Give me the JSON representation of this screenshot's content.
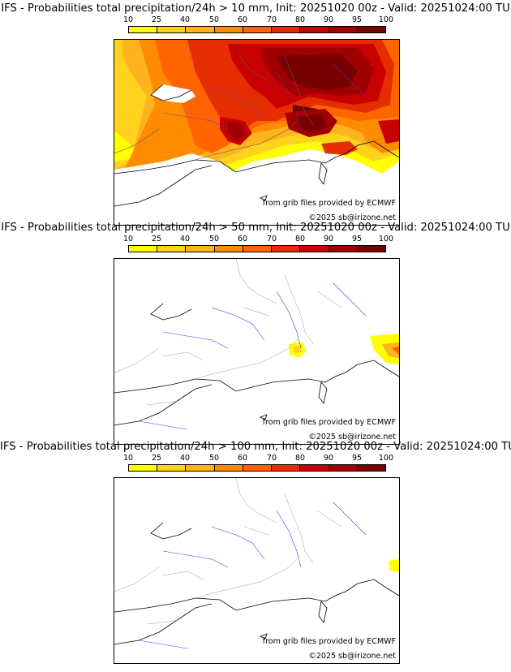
{
  "colors": [
    "#ffff00",
    "#ffd21e",
    "#ffb41e",
    "#ff8c00",
    "#ff6400",
    "#e62d00",
    "#c80000",
    "#a00000",
    "#780000"
  ],
  "scale_ticks": [
    "10",
    "25",
    "40",
    "50",
    "60",
    "70",
    "80",
    "90",
    "95",
    "100"
  ],
  "source_text": "from grib files provided by ECMWF",
  "copyright_text": "©2025 sb@irizone.net",
  "panels": [
    {
      "title": "IFS - Probabilities total precipitation/24h > 10 mm, Init: 20251020 00z - Valid: 20251024:00 TU",
      "threshold_mm": 10
    },
    {
      "title": "IFS - Probabilities total precipitation/24h > 50 mm, Init: 20251020 00z - Valid: 20251024:00 TU",
      "threshold_mm": 50
    },
    {
      "title": "IFS - Probabilities total precipitation/24h > 100 mm, Init: 20251020 00z - Valid: 20251024:00 TU",
      "threshold_mm": 100
    }
  ]
}
